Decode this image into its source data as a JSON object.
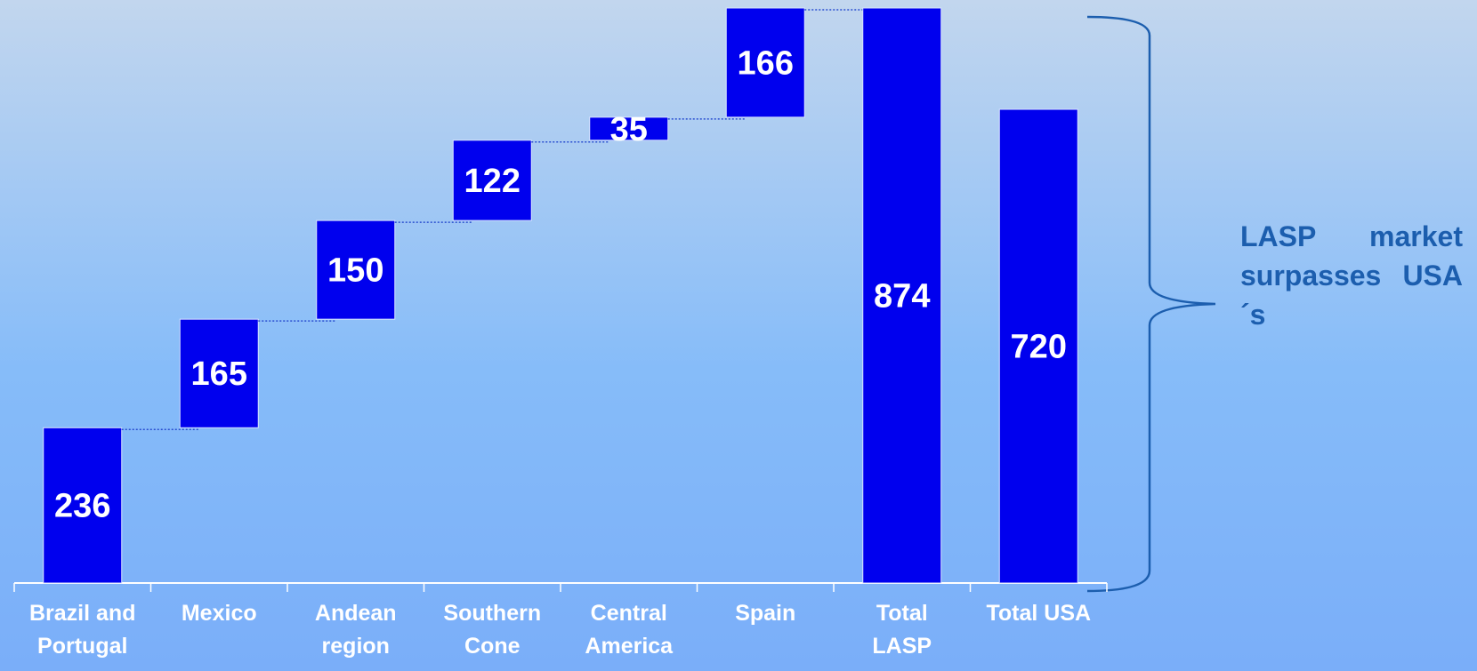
{
  "chart_data": {
    "type": "waterfall",
    "categories": [
      "Brazil and\nPortugal",
      "Mexico",
      "Andean\nregion",
      "Southern\nCone",
      "Central\nAmerica",
      "Spain",
      "Total\nLASP",
      "Total USA"
    ],
    "values": [
      236,
      165,
      150,
      122,
      35,
      166,
      874,
      720
    ],
    "bar_kind": [
      "step",
      "step",
      "step",
      "step",
      "step",
      "step",
      "total",
      "total"
    ],
    "color": "#0000ee",
    "annotation": "LASP  market surpasses USA´s"
  }
}
